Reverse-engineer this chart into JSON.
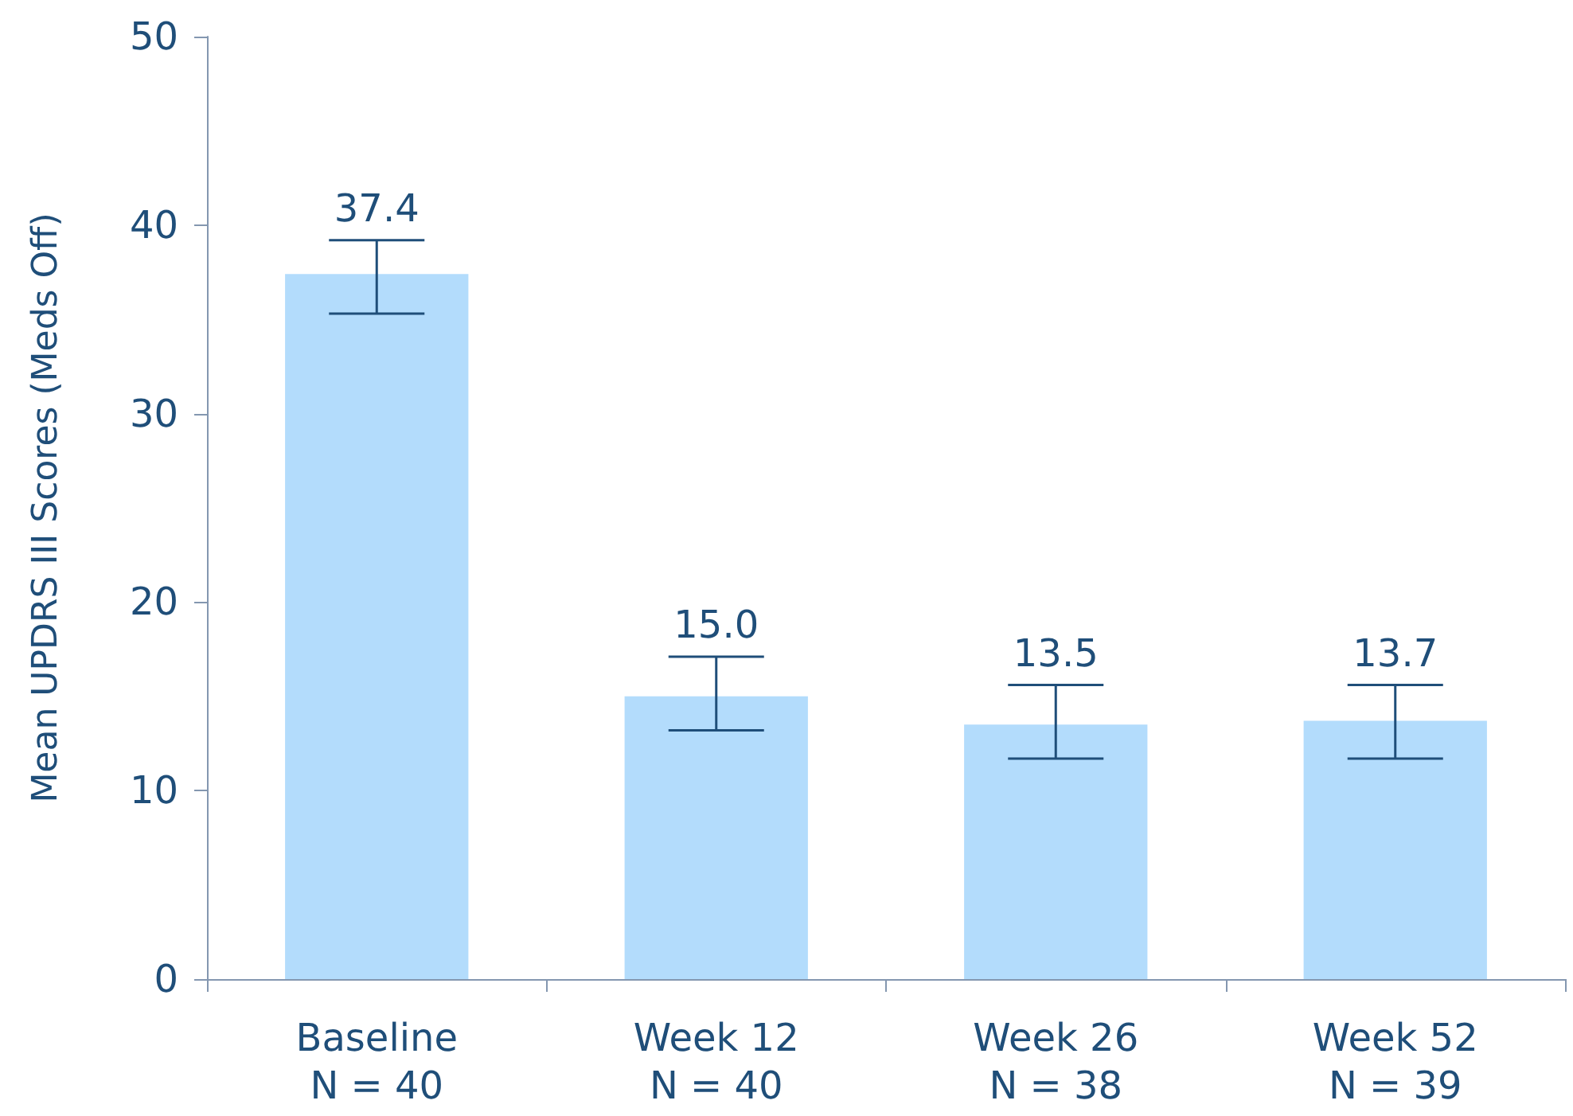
{
  "chart_data": {
    "type": "bar",
    "ylabel": "Mean UPDRS III Scores (Meds Off)",
    "categories": [
      "Baseline\nN = 40",
      "Week 12\nN = 40",
      "Week 26\nN = 38",
      "Week 52\nN = 39"
    ],
    "values": [
      37.4,
      15.0,
      13.5,
      13.7
    ],
    "errors": [
      [
        35.3,
        39.2
      ],
      [
        13.2,
        17.1
      ],
      [
        11.7,
        15.6
      ],
      [
        11.7,
        15.6
      ]
    ],
    "value_labels": [
      "37.4",
      "15.0",
      "13.5",
      "13.7"
    ],
    "color": "#b3dcfc",
    "ylim": [
      0,
      50
    ],
    "yticks": [
      0,
      10,
      20,
      30,
      40,
      50
    ],
    "grid": false
  }
}
